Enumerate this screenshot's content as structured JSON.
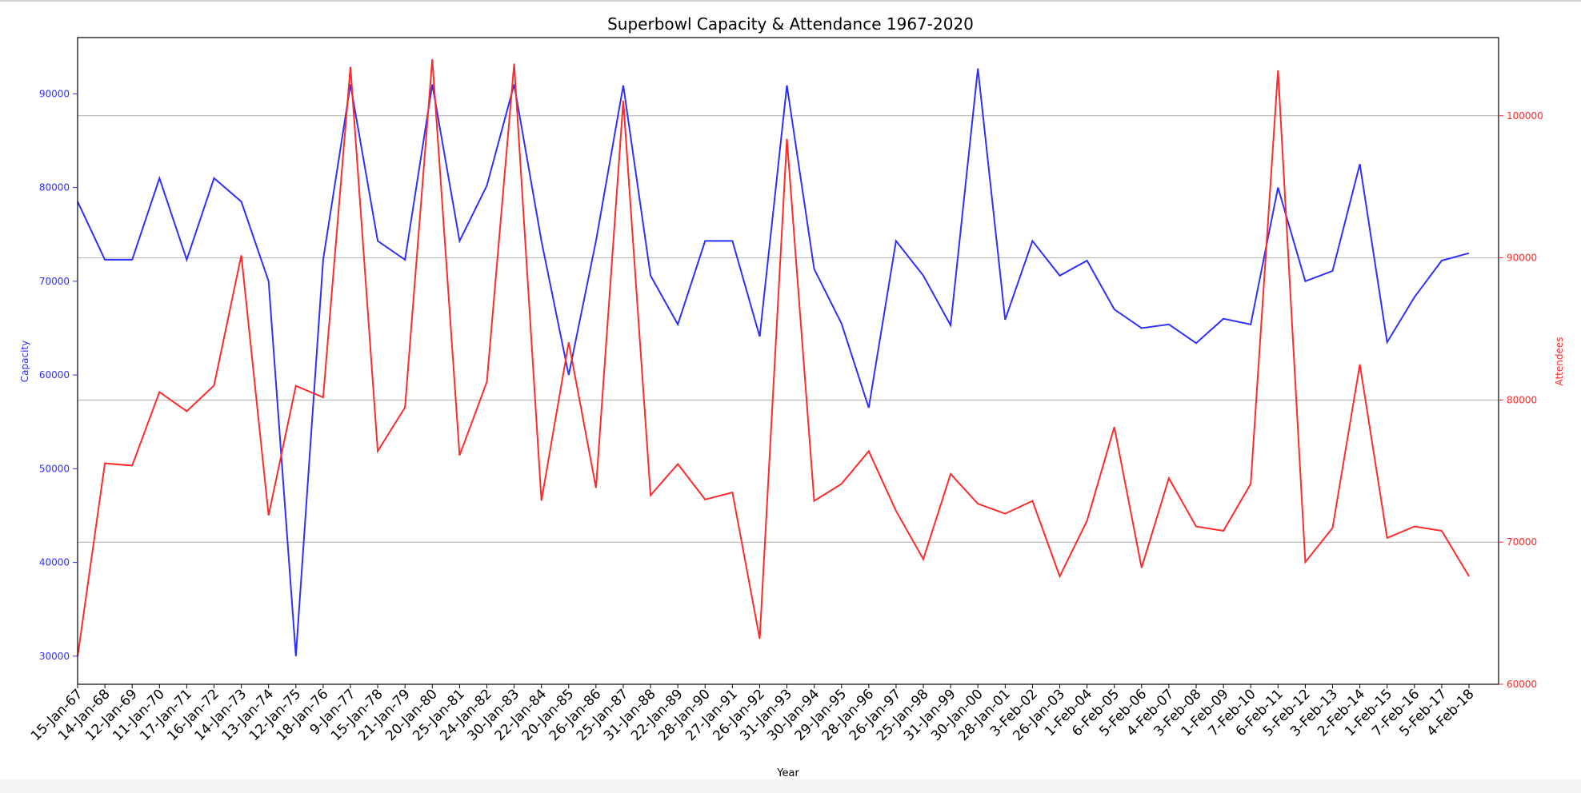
{
  "chart_data": {
    "type": "line",
    "title": "Superbowl Capacity & Attendance 1967-2020",
    "xlabel": "Year",
    "ylabel_left": "Capacity",
    "ylabel_right": "Attendees",
    "grid": "horizontal (right axis)",
    "categories": [
      "15-Jan-67",
      "14-Jan-68",
      "12-Jan-69",
      "11-Jan-70",
      "17-Jan-71",
      "16-Jan-72",
      "14-Jan-73",
      "13-Jan-74",
      "12-Jan-75",
      "18-Jan-76",
      "9-Jan-77",
      "15-Jan-78",
      "21-Jan-79",
      "20-Jan-80",
      "25-Jan-81",
      "24-Jan-82",
      "30-Jan-83",
      "22-Jan-84",
      "20-Jan-85",
      "26-Jan-86",
      "25-Jan-87",
      "31-Jan-88",
      "22-Jan-89",
      "28-Jan-90",
      "27-Jan-91",
      "26-Jan-92",
      "31-Jan-93",
      "30-Jan-94",
      "29-Jan-95",
      "28-Jan-96",
      "26-Jan-97",
      "25-Jan-98",
      "31-Jan-99",
      "30-Jan-00",
      "28-Jan-01",
      "3-Feb-02",
      "26-Jan-03",
      "1-Feb-04",
      "6-Feb-05",
      "5-Feb-06",
      "4-Feb-07",
      "3-Feb-08",
      "1-Feb-09",
      "7-Feb-10",
      "6-Feb-11",
      "5-Feb-12",
      "3-Feb-13",
      "2-Feb-14",
      "1-Feb-15",
      "7-Feb-16",
      "5-Feb-17",
      "4-Feb-18"
    ],
    "series": [
      {
        "name": "Capacity",
        "axis": "left",
        "color": "#2f2fff",
        "values": [
          78500,
          72300,
          72300,
          81000,
          72300,
          81000,
          78500,
          70000,
          30000,
          72300,
          91000,
          74300,
          72300,
          91000,
          74300,
          80200,
          91000,
          74300,
          60000,
          74300,
          90900,
          70600,
          65400,
          74300,
          74300,
          64100,
          90900,
          71300,
          65500,
          56500,
          74300,
          70600,
          65300,
          92700,
          65900,
          74300,
          70600,
          72200,
          67000,
          65000,
          65400,
          63400,
          66000,
          65400,
          80000,
          70000,
          71100,
          82500,
          63500,
          68300,
          72200,
          73000
        ]
      },
      {
        "name": "Attendees",
        "axis": "right",
        "color": "#ff2a2a",
        "values": [
          61946,
          75546,
          75389,
          80562,
          79204,
          81023,
          90182,
          71882,
          80997,
          80187,
          103438,
          76400,
          79484,
          103985,
          76104,
          81270,
          103667,
          72920,
          84059,
          73818,
          101063,
          73302,
          75495,
          73000,
          73500,
          63200,
          98374,
          72900,
          74100,
          76400,
          72200,
          68800,
          74800,
          72700,
          72000,
          72900,
          67600,
          71500,
          78100,
          68200,
          74500,
          71100,
          70800,
          74100,
          103200,
          68600,
          71000,
          82500,
          70300,
          71100,
          70800,
          67600
        ]
      }
    ],
    "y_left": {
      "min": 27000,
      "max": 96000,
      "ticks": [
        30000,
        40000,
        50000,
        60000,
        70000,
        80000,
        90000
      ]
    },
    "y_right": {
      "min": 60000,
      "max": 105500,
      "ticks": [
        60000,
        70000,
        80000,
        90000,
        100000
      ]
    }
  }
}
